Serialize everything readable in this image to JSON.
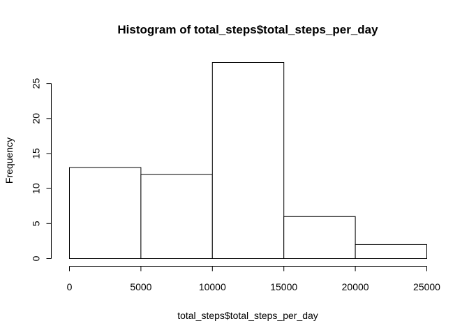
{
  "chart_data": {
    "type": "bar",
    "title": "Histogram of total_steps$total_steps_per_day",
    "xlabel": "total_steps$total_steps_per_day",
    "ylabel": "Frequency",
    "bins": [
      {
        "from": 0,
        "to": 5000,
        "count": 13
      },
      {
        "from": 5000,
        "to": 10000,
        "count": 12
      },
      {
        "from": 10000,
        "to": 15000,
        "count": 28
      },
      {
        "from": 15000,
        "to": 20000,
        "count": 6
      },
      {
        "from": 20000,
        "to": 25000,
        "count": 2
      }
    ],
    "xlim": [
      0,
      25000
    ],
    "ylim": [
      0,
      28
    ],
    "x_ticks": [
      0,
      5000,
      10000,
      15000,
      20000,
      25000
    ],
    "y_ticks": [
      0,
      5,
      10,
      15,
      20,
      25
    ],
    "grid": false,
    "legend": "none",
    "colors": {
      "bar_fill": "#ffffff",
      "bar_stroke": "#000000"
    }
  }
}
